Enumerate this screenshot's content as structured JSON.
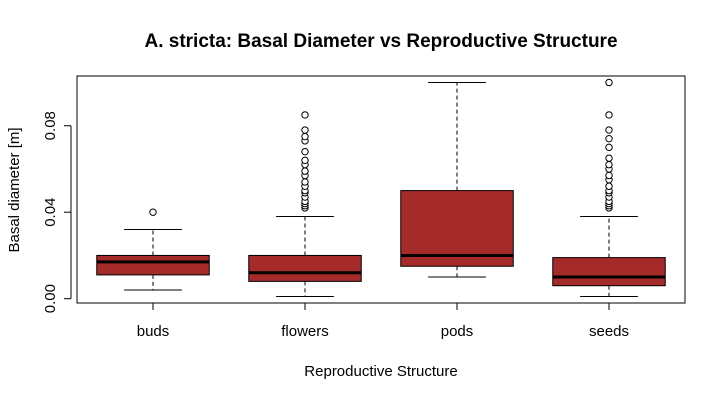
{
  "chart_data": {
    "type": "boxplot",
    "title": "A. stricta: Basal Diameter vs Reproductive Structure",
    "xlabel": "Reproductive Structure",
    "ylabel": "Basal diameter [m]",
    "ylim": [
      -0.002,
      0.103
    ],
    "yticks": [
      "0.00",
      "0.04",
      "0.08"
    ],
    "ytick_values": [
      0.0,
      0.04,
      0.08
    ],
    "grid": false,
    "box_color": "#a52a2a",
    "categories": [
      "buds",
      "flowers",
      "pods",
      "seeds"
    ],
    "boxes": [
      {
        "category": "buds",
        "whisker_low": 0.004,
        "q1": 0.011,
        "median": 0.017,
        "q3": 0.02,
        "whisker_high": 0.032,
        "outliers": [
          0.04
        ]
      },
      {
        "category": "flowers",
        "whisker_low": 0.001,
        "q1": 0.008,
        "median": 0.012,
        "q3": 0.02,
        "whisker_high": 0.038,
        "outliers": [
          0.042,
          0.043,
          0.044,
          0.045,
          0.047,
          0.049,
          0.05,
          0.052,
          0.054,
          0.057,
          0.059,
          0.062,
          0.064,
          0.068,
          0.073,
          0.075,
          0.078,
          0.085
        ]
      },
      {
        "category": "pods",
        "whisker_low": 0.01,
        "q1": 0.015,
        "median": 0.02,
        "q3": 0.05,
        "whisker_high": 0.1,
        "outliers": []
      },
      {
        "category": "seeds",
        "whisker_low": 0.001,
        "q1": 0.006,
        "median": 0.01,
        "q3": 0.019,
        "whisker_high": 0.038,
        "outliers": [
          0.042,
          0.043,
          0.044,
          0.045,
          0.047,
          0.049,
          0.05,
          0.052,
          0.055,
          0.057,
          0.06,
          0.062,
          0.065,
          0.07,
          0.074,
          0.078,
          0.085,
          0.1
        ]
      }
    ]
  }
}
